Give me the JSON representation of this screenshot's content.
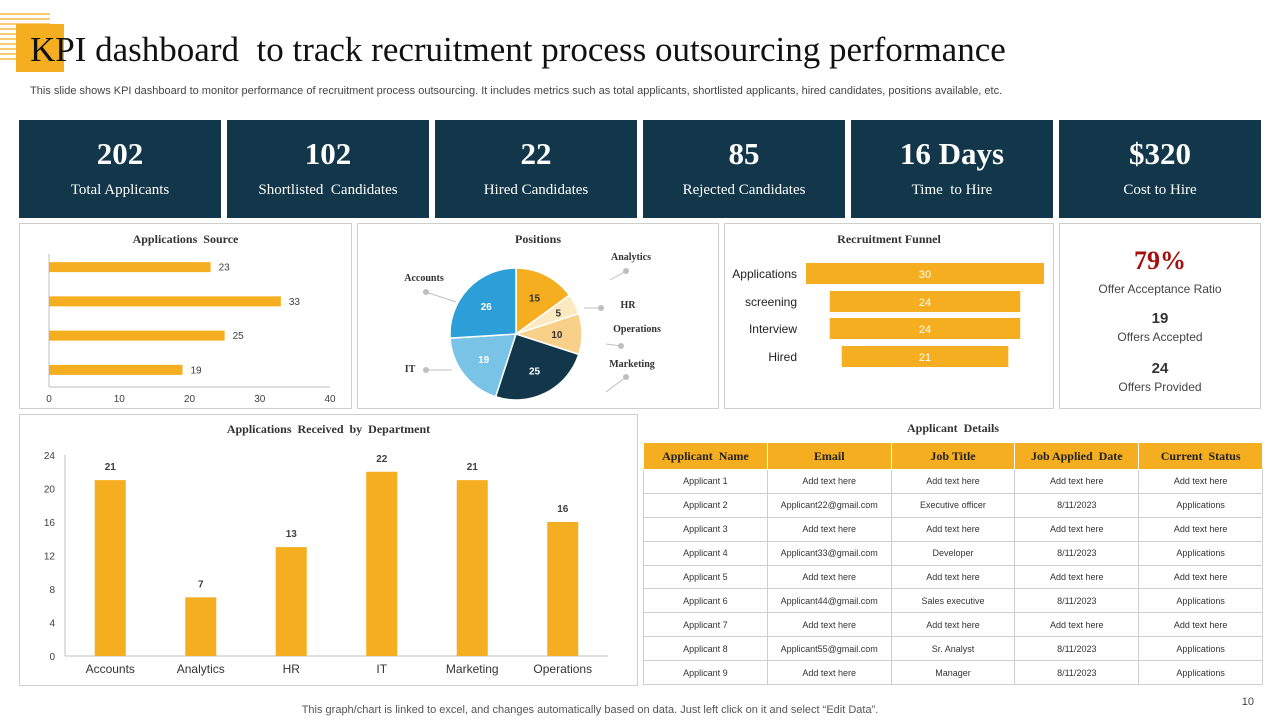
{
  "header": {
    "title": "KPI dashboard  to track recruitment process outsourcing performance",
    "subtitle": "This slide shows KPI dashboard to monitor performance of recruitment process outsourcing. It includes metrics such as total applicants, shortlisted applicants, hired candidates, positions available, etc."
  },
  "kpis": [
    {
      "value": "202",
      "label": "Total Applicants"
    },
    {
      "value": "102",
      "label": "Shortlisted  Candidates"
    },
    {
      "value": "22",
      "label": "Hired Candidates"
    },
    {
      "value": "85",
      "label": "Rejected Candidates"
    },
    {
      "value": "16 Days",
      "label": "Time  to Hire"
    },
    {
      "value": "$320",
      "label": "Cost to Hire"
    }
  ],
  "offer": {
    "ratio": "79%",
    "ratio_label": "Offer Acceptance Ratio",
    "accepted": "19",
    "accepted_label": "Offers Accepted",
    "provided": "24",
    "provided_label": "Offers Provided"
  },
  "table": {
    "title": "Applicant  Details",
    "headers": [
      "Applicant  Name",
      "Email",
      "Job Title",
      "Job Applied  Date",
      "Current  Status"
    ],
    "rows": [
      [
        "Applicant 1",
        "Add text here",
        "Add text here",
        "Add text here",
        "Add text here"
      ],
      [
        "Applicant 2",
        "Applicant22@gmail.com",
        "Executive officer",
        "8/11/2023",
        "Applications"
      ],
      [
        "Applicant 3",
        "Add text here",
        "Add text here",
        "Add text here",
        "Add text here"
      ],
      [
        "Applicant 4",
        "Applicant33@gmail.com",
        "Developer",
        "8/11/2023",
        "Applications"
      ],
      [
        "Applicant 5",
        "Add text here",
        "Add text here",
        "Add text here",
        "Add text here"
      ],
      [
        "Applicant 6",
        "Applicant44@gmail.com",
        "Sales executive",
        "8/11/2023",
        "Applications"
      ],
      [
        "Applicant 7",
        "Add text here",
        "Add text here",
        "Add text here",
        "Add text here"
      ],
      [
        "Applicant 8",
        "Applicant55@gmail.com",
        "Sr. Analyst",
        "8/11/2023",
        "Applications"
      ],
      [
        "Applicant 9",
        "Add text here",
        "Manager",
        "8/11/2023",
        "Applications"
      ]
    ]
  },
  "footer": {
    "note": "This graph/chart is linked to excel,  and changes automatically based on data. Just left click on it and select “Edit Data”.",
    "page": "10"
  },
  "colors": {
    "accent": "#f5ae1f",
    "navy": "#12364a",
    "offer_red": "#a50f0f"
  },
  "chart_data": [
    {
      "id": "source",
      "type": "bar",
      "orientation": "horizontal",
      "title": "Applications  Source",
      "values": [
        23,
        33,
        25,
        19
      ],
      "xlim": [
        0,
        40
      ],
      "xticks": [
        0,
        10,
        20,
        30,
        40
      ]
    },
    {
      "id": "positions",
      "type": "pie",
      "title": "Positions",
      "slices": [
        {
          "label": "Analytics",
          "value": 15,
          "color": "#f5ae1f"
        },
        {
          "label": "HR",
          "value": 5,
          "color": "#fde9c0"
        },
        {
          "label": "Operations",
          "value": 10,
          "color": "#f8d08a"
        },
        {
          "label": "Marketing",
          "value": 25,
          "color": "#12364a"
        },
        {
          "label": "IT",
          "value": 19,
          "color": "#79c3e6"
        },
        {
          "label": "Accounts",
          "value": 26,
          "color": "#2c9fd8"
        }
      ]
    },
    {
      "id": "funnel",
      "type": "bar",
      "orientation": "funnel",
      "title": "Recruitment Funnel",
      "categories": [
        "Applications",
        "screening",
        "Interview",
        "Hired"
      ],
      "values": [
        30,
        24,
        24,
        21
      ]
    },
    {
      "id": "department",
      "type": "bar",
      "title": "Applications  Received  by  Department",
      "categories": [
        "Accounts",
        "Analytics",
        "HR",
        "IT",
        "Marketing",
        "Operations"
      ],
      "values": [
        21,
        7,
        13,
        22,
        21,
        16
      ],
      "ylim": [
        0,
        24
      ],
      "yticks": [
        0,
        4,
        8,
        12,
        16,
        20,
        24
      ]
    }
  ]
}
